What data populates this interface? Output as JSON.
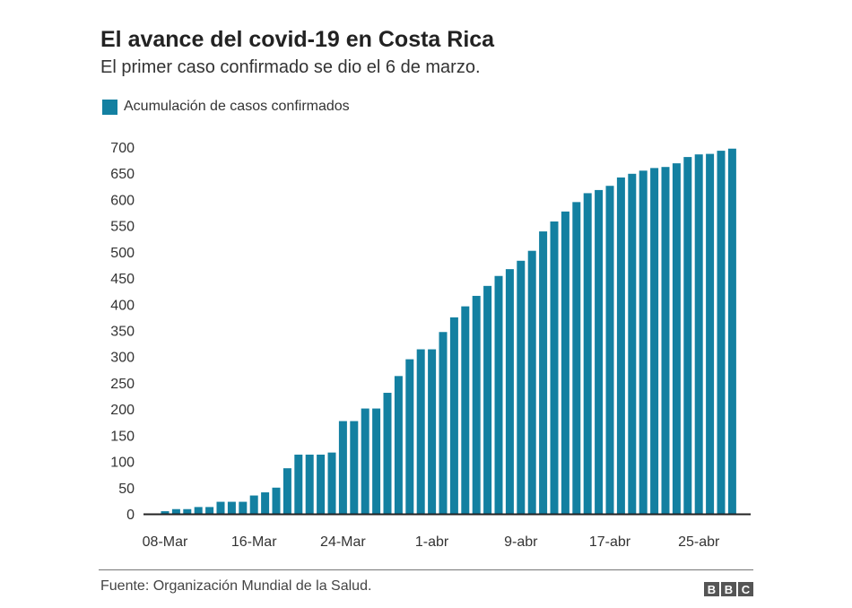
{
  "chart_data": {
    "type": "bar",
    "title": "El avance del covid-19 en Costa Rica",
    "subtitle": "El primer caso confirmado se dio el 6 de marzo.",
    "legend": {
      "label": "Acumulación de casos confirmados",
      "placement": "top-left"
    },
    "color": "#1380a1",
    "xlabel": "",
    "ylabel": "",
    "ylim": [
      0,
      700
    ],
    "yticks": [
      0,
      50,
      100,
      150,
      200,
      250,
      300,
      350,
      400,
      450,
      500,
      550,
      600,
      650,
      700
    ],
    "grid": false,
    "xtick_labels": [
      {
        "label": "08-Mar",
        "index": 0
      },
      {
        "label": "16-Mar",
        "index": 8
      },
      {
        "label": "24-Mar",
        "index": 16
      },
      {
        "label": "1-abr",
        "index": 24
      },
      {
        "label": "9-abr",
        "index": 32
      },
      {
        "label": "17-abr",
        "index": 40
      },
      {
        "label": "25-abr",
        "index": 48
      }
    ],
    "categories": [
      "08-Mar",
      "09-Mar",
      "10-Mar",
      "11-Mar",
      "12-Mar",
      "13-Mar",
      "14-Mar",
      "15-Mar",
      "16-Mar",
      "17-Mar",
      "18-Mar",
      "19-Mar",
      "20-Mar",
      "21-Mar",
      "22-Mar",
      "23-Mar",
      "24-Mar",
      "25-Mar",
      "26-Mar",
      "27-Mar",
      "28-Mar",
      "29-Mar",
      "30-Mar",
      "31-Mar",
      "1-abr",
      "2-abr",
      "3-abr",
      "4-abr",
      "5-abr",
      "6-abr",
      "7-abr",
      "8-abr",
      "9-abr",
      "10-abr",
      "11-abr",
      "12-abr",
      "13-abr",
      "14-abr",
      "15-abr",
      "16-abr",
      "17-abr",
      "18-abr",
      "19-abr",
      "20-abr",
      "21-abr",
      "22-abr",
      "23-abr",
      "24-abr",
      "25-abr",
      "26-abr",
      "27-abr",
      "28-abr"
    ],
    "values": [
      5,
      9,
      9,
      13,
      13,
      23,
      23,
      23,
      35,
      41,
      50,
      87,
      113,
      113,
      113,
      117,
      177,
      177,
      201,
      201,
      231,
      263,
      295,
      314,
      314,
      347,
      375,
      396,
      416,
      435,
      454,
      467,
      483,
      502,
      539,
      558,
      577,
      595,
      612,
      618,
      626,
      642,
      649,
      655,
      660,
      662,
      669,
      681,
      686,
      687,
      693,
      697
    ]
  },
  "footer": {
    "source": "Fuente: Organización Mundial de la Salud.",
    "logo": [
      "B",
      "B",
      "C"
    ]
  }
}
